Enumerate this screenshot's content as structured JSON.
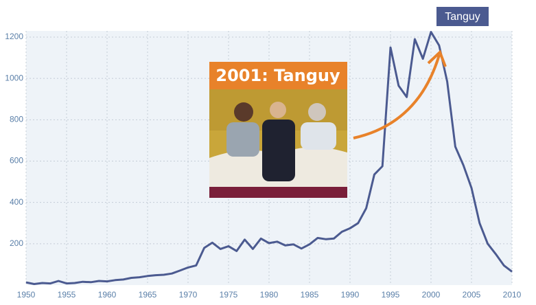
{
  "chart_data": {
    "type": "line",
    "x": [
      1950,
      1951,
      1952,
      1953,
      1954,
      1955,
      1956,
      1957,
      1958,
      1959,
      1960,
      1961,
      1962,
      1963,
      1964,
      1965,
      1966,
      1967,
      1968,
      1969,
      1970,
      1971,
      1972,
      1973,
      1974,
      1975,
      1976,
      1977,
      1978,
      1979,
      1980,
      1981,
      1982,
      1983,
      1984,
      1985,
      1986,
      1987,
      1988,
      1989,
      1990,
      1991,
      1992,
      1993,
      1994,
      1995,
      1996,
      1997,
      1998,
      1999,
      2000,
      2001,
      2002,
      2003,
      2004,
      2005,
      2006,
      2007,
      2008,
      2009,
      2010
    ],
    "series": [
      {
        "name": "Tanguy",
        "color": "#4b5a90",
        "values": [
          13,
          5,
          10,
          8,
          20,
          8,
          10,
          16,
          14,
          20,
          18,
          24,
          27,
          35,
          38,
          44,
          48,
          50,
          56,
          70,
          85,
          95,
          180,
          205,
          175,
          188,
          165,
          220,
          175,
          225,
          203,
          210,
          192,
          197,
          177,
          197,
          228,
          222,
          225,
          258,
          275,
          300,
          372,
          535,
          575,
          1150,
          965,
          910,
          1190,
          1095,
          1225,
          1160,
          985,
          670,
          580,
          470,
          300,
          200,
          150,
          95,
          65
        ]
      }
    ],
    "xlim": [
      1950,
      2010
    ],
    "xticks": [
      1950,
      1955,
      1960,
      1965,
      1970,
      1975,
      1980,
      1985,
      1990,
      1995,
      2000,
      2005,
      2010
    ],
    "ylim": [
      0,
      1230
    ],
    "yticks": [
      200,
      400,
      600,
      800,
      1000,
      1200
    ],
    "grid": true,
    "annotations": [
      "2001: Tanguy"
    ]
  }
}
